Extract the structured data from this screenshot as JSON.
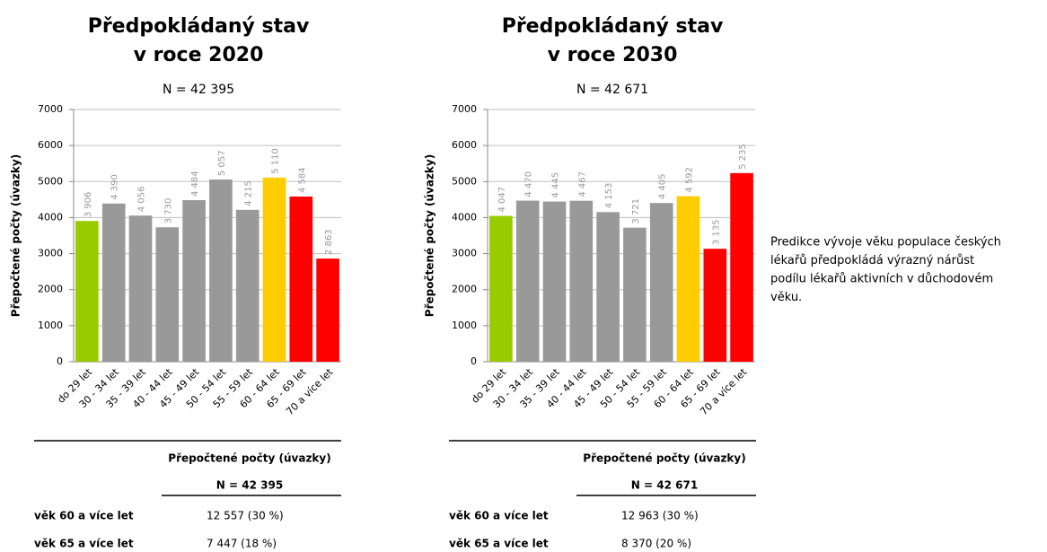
{
  "chart_data": [
    {
      "type": "bar",
      "title": [
        "Předpokládaný stav",
        "v roce 2020"
      ],
      "subtitle": "N = 42 395",
      "y_label": "Přepočtené počty (úvazky)",
      "categories": [
        "do 29 let",
        "30 - 34 let",
        "35 - 39 let",
        "40 - 44 let",
        "45 - 49 let",
        "50 - 54 let",
        "55 - 59 let",
        "60 - 64 let",
        "65 - 69 let",
        "70 a více let"
      ],
      "values": [
        3906,
        4390,
        4056,
        3730,
        4484,
        5057,
        4215,
        5110,
        4584,
        2863
      ],
      "value_labels": [
        "3 906",
        "4 390",
        "4 056",
        "3 730",
        "4 484",
        "5 057",
        "4 215",
        "5 110",
        "4 584",
        "2 863"
      ],
      "colors": [
        "#99cc00",
        "#999999",
        "#999999",
        "#999999",
        "#999999",
        "#999999",
        "#999999",
        "#ffcc00",
        "#ff0000",
        "#ff0000"
      ],
      "ylim": [
        0,
        7000
      ],
      "yticks": [
        0,
        1000,
        2000,
        3000,
        4000,
        5000,
        6000,
        7000
      ],
      "grid": true
    },
    {
      "type": "bar",
      "title": [
        "Předpokládaný stav",
        "v roce 2030"
      ],
      "subtitle": "N = 42 671",
      "y_label": "Přepočtené počty (úvazky)",
      "categories": [
        "do 29 let",
        "30 - 34 let",
        "35 - 39 let",
        "40 - 44 let",
        "45 - 49 let",
        "50 - 54 let",
        "55 - 59 let",
        "60 - 64 let",
        "65 - 69 let",
        "70 a více let"
      ],
      "values": [
        4047,
        4470,
        4445,
        4467,
        4153,
        3721,
        4405,
        4592,
        3135,
        5235
      ],
      "value_labels": [
        "4 047",
        "4 470",
        "4 445",
        "4 467",
        "4 153",
        "3 721",
        "4 405",
        "4 592",
        "3 135",
        "5 235"
      ],
      "colors": [
        "#99cc00",
        "#999999",
        "#999999",
        "#999999",
        "#999999",
        "#999999",
        "#999999",
        "#ffcc00",
        "#ff0000",
        "#ff0000"
      ],
      "ylim": [
        0,
        7000
      ],
      "yticks": [
        0,
        1000,
        2000,
        3000,
        4000,
        5000,
        6000,
        7000
      ],
      "grid": true
    }
  ],
  "tables": [
    {
      "header": "Přepočtené počty (úvazky)",
      "subheader": "N = 42 395",
      "rows": [
        [
          "věk 60 a více let",
          "12 557 (30 %)"
        ],
        [
          "věk 65 a více let",
          "7 447 (18 %)"
        ]
      ]
    },
    {
      "header": "Přepočtené počty (úvazky)",
      "subheader": "N = 42 671",
      "rows": [
        [
          "věk 60 a více let",
          "12 963 (30 %)"
        ],
        [
          "věk 65 a více let",
          "8 370 (20 %)"
        ]
      ]
    }
  ],
  "note": [
    "Predikce vývoje věku populace českých",
    "lékařů předpokládá výrazný nárůst",
    "podílu lékařů aktivních v důchodovém",
    "věku."
  ]
}
